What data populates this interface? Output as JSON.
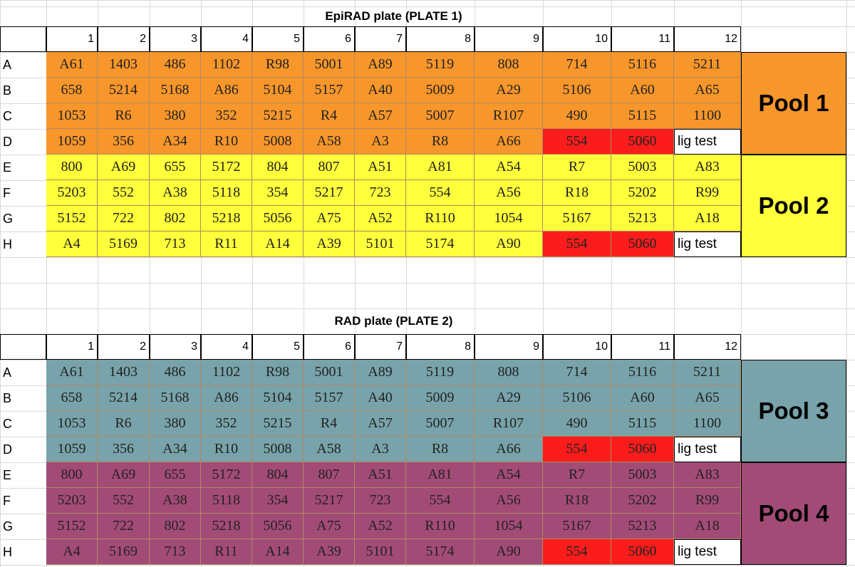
{
  "colors": {
    "pool1": "#f7962b",
    "pool2": "#ffff3b",
    "pool3": "#78a3aa",
    "pool4": "#a34b77",
    "control": "#fc1c1c",
    "white": "#ffffff"
  },
  "column_headers": [
    "1",
    "2",
    "3",
    "4",
    "5",
    "6",
    "7",
    "8",
    "9",
    "10",
    "11",
    "12"
  ],
  "row_labels": [
    "A",
    "B",
    "C",
    "D",
    "E",
    "F",
    "G",
    "H"
  ],
  "plates": [
    {
      "title": "EpiRAD plate (PLATE 1)",
      "pools": [
        {
          "label": "Pool 1",
          "color_key": "pool1"
        },
        {
          "label": "Pool 2",
          "color_key": "pool2"
        }
      ],
      "rows": [
        [
          "A61",
          "1403",
          "486",
          "1102",
          "R98",
          "5001",
          "A89",
          "5119",
          "808",
          "714",
          "5116",
          "5211"
        ],
        [
          "658",
          "5214",
          "5168",
          "A86",
          "5104",
          "5157",
          "A40",
          "5009",
          "A29",
          "5106",
          "A60",
          "A65"
        ],
        [
          "1053",
          "R6",
          "380",
          "352",
          "5215",
          "R4",
          "A57",
          "5007",
          "R107",
          "490",
          "5115",
          "1100"
        ],
        [
          "1059",
          "356",
          "A34",
          "R10",
          "5008",
          "A58",
          "A3",
          "R8",
          "A66",
          "554",
          "5060",
          "lig test"
        ],
        [
          "800",
          "A69",
          "655",
          "5172",
          "804",
          "807",
          "A51",
          "A81",
          "A54",
          "R7",
          "5003",
          "A83"
        ],
        [
          "5203",
          "552",
          "A38",
          "5118",
          "354",
          "5217",
          "723",
          "554",
          "A56",
          "R18",
          "5202",
          "R99"
        ],
        [
          "5152",
          "722",
          "802",
          "5218",
          "5056",
          "A75",
          "A52",
          "R110",
          "1054",
          "5167",
          "5213",
          "A18"
        ],
        [
          "A4",
          "5169",
          "713",
          "R11",
          "A14",
          "A39",
          "5101",
          "5174",
          "A90",
          "554",
          "5060",
          "lig test"
        ]
      ]
    },
    {
      "title": "RAD plate (PLATE 2)",
      "pools": [
        {
          "label": "Pool 3",
          "color_key": "pool3"
        },
        {
          "label": "Pool 4",
          "color_key": "pool4"
        }
      ],
      "rows": [
        [
          "A61",
          "1403",
          "486",
          "1102",
          "R98",
          "5001",
          "A89",
          "5119",
          "808",
          "714",
          "5116",
          "5211"
        ],
        [
          "658",
          "5214",
          "5168",
          "A86",
          "5104",
          "5157",
          "A40",
          "5009",
          "A29",
          "5106",
          "A60",
          "A65"
        ],
        [
          "1053",
          "R6",
          "380",
          "352",
          "5215",
          "R4",
          "A57",
          "5007",
          "R107",
          "490",
          "5115",
          "1100"
        ],
        [
          "1059",
          "356",
          "A34",
          "R10",
          "5008",
          "A58",
          "A3",
          "R8",
          "A66",
          "554",
          "5060",
          "lig test"
        ],
        [
          "800",
          "A69",
          "655",
          "5172",
          "804",
          "807",
          "A51",
          "A81",
          "A54",
          "R7",
          "5003",
          "A83"
        ],
        [
          "5203",
          "552",
          "A38",
          "5118",
          "354",
          "5217",
          "723",
          "554",
          "A56",
          "R18",
          "5202",
          "R99"
        ],
        [
          "5152",
          "722",
          "802",
          "5218",
          "5056",
          "A75",
          "A52",
          "R110",
          "1054",
          "5167",
          "5213",
          "A18"
        ],
        [
          "A4",
          "5169",
          "713",
          "R11",
          "A14",
          "A39",
          "5101",
          "5174",
          "A90",
          "554",
          "5060",
          "lig test"
        ]
      ]
    }
  ]
}
